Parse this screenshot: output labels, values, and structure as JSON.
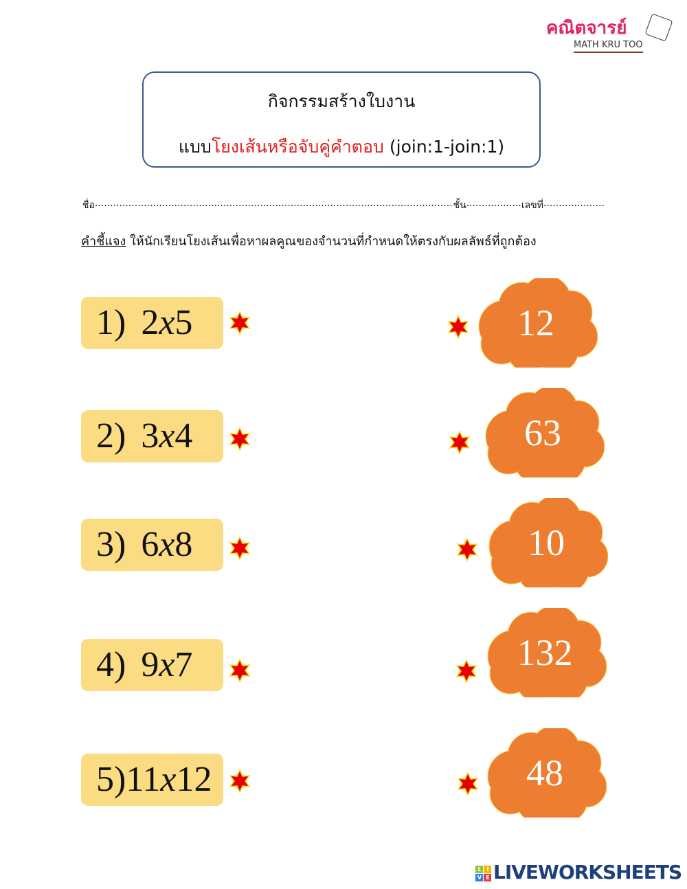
{
  "logo": {
    "thai": "คณิตจารย์",
    "english": "MATH KRU TOO"
  },
  "title": {
    "line1": "กิจกรรมสร้างใบงาน",
    "line2_prefix": "แบบ",
    "line2_highlight": "โยงเส้นหรือจับคู่คำตอบ",
    "line2_suffix": " (join:1-join:1)"
  },
  "name_line": {
    "name": "ชื่อ",
    "name_dots": "....................................................................................................................................................",
    "class": "ชั้น",
    "class_dots": "..................",
    "number": "เลขที่",
    "number_dots": "...................."
  },
  "instructions": {
    "label": "คำชี้แจง",
    "text": " ให้นักเรียนโยงเส้นเพื่อหาผลคูณของจำนวนที่กำหนดให้ตรงกับผลลัพธ์ที่ถูกต้อง"
  },
  "questions": [
    {
      "num": "1)",
      "a": "2",
      "b": "5"
    },
    {
      "num": "2)",
      "a": "3",
      "b": "4"
    },
    {
      "num": "3)",
      "a": "6",
      "b": "8"
    },
    {
      "num": "4)",
      "a": "9",
      "b": "7"
    },
    {
      "num": "5)",
      "a": "11",
      "b": "12"
    }
  ],
  "times_symbol": "x",
  "answers": [
    "12",
    "63",
    "10",
    "132",
    "48"
  ],
  "colors": {
    "question_bg": "#fcdc83",
    "cloud": "#ed7d31",
    "star": "#e60000",
    "star_outline": "#ffd700",
    "title_border": "#3b5b8c",
    "highlight": "#e02020"
  },
  "footer": {
    "brand": "LIVEWORKSHEETS",
    "blocks": [
      "L",
      "I",
      "V",
      "E"
    ]
  }
}
